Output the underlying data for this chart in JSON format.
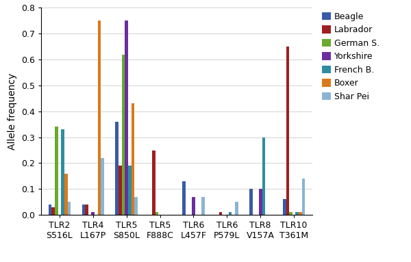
{
  "categories": [
    "TLR2\nS516L",
    "TLR4\nL167P",
    "TLR5\nS850L",
    "TLR5\nF888C",
    "TLR6\nL457F",
    "TLR6\nP579L",
    "TLR8\nV157A",
    "TLR10\nT361M"
  ],
  "breeds": [
    "Beagle",
    "Labrador",
    "German S.",
    "Yorkshire",
    "French B.",
    "Boxer",
    "Shar Pei"
  ],
  "colors": [
    "#3a5aa8",
    "#9e2020",
    "#6aaa2e",
    "#6a2e9e",
    "#2e8ea0",
    "#d97a1a",
    "#8ab4d4"
  ],
  "values": {
    "Beagle": [
      0.04,
      0.04,
      0.36,
      0.0,
      0.13,
      0.0,
      0.1,
      0.06
    ],
    "Labrador": [
      0.03,
      0.04,
      0.19,
      0.25,
      0.0,
      0.01,
      0.0,
      0.65
    ],
    "German S.": [
      0.34,
      0.0,
      0.62,
      0.01,
      0.0,
      0.0,
      0.0,
      0.01
    ],
    "Yorkshire": [
      0.0,
      0.01,
      0.75,
      0.0,
      0.07,
      0.0,
      0.1,
      0.0
    ],
    "French B.": [
      0.33,
      0.0,
      0.19,
      0.0,
      0.0,
      0.01,
      0.3,
      0.01
    ],
    "Boxer": [
      0.16,
      0.75,
      0.43,
      0.0,
      0.0,
      0.0,
      0.0,
      0.01
    ],
    "Shar Pei": [
      0.05,
      0.22,
      0.07,
      0.0,
      0.07,
      0.05,
      0.0,
      0.14
    ]
  },
  "ylabel": "Allele frequency",
  "ylim": [
    0,
    0.8
  ],
  "yticks": [
    0.0,
    0.1,
    0.2,
    0.3,
    0.4,
    0.5,
    0.6,
    0.7,
    0.8
  ],
  "legend_fontsize": 9,
  "axis_fontsize": 10,
  "tick_fontsize": 9
}
